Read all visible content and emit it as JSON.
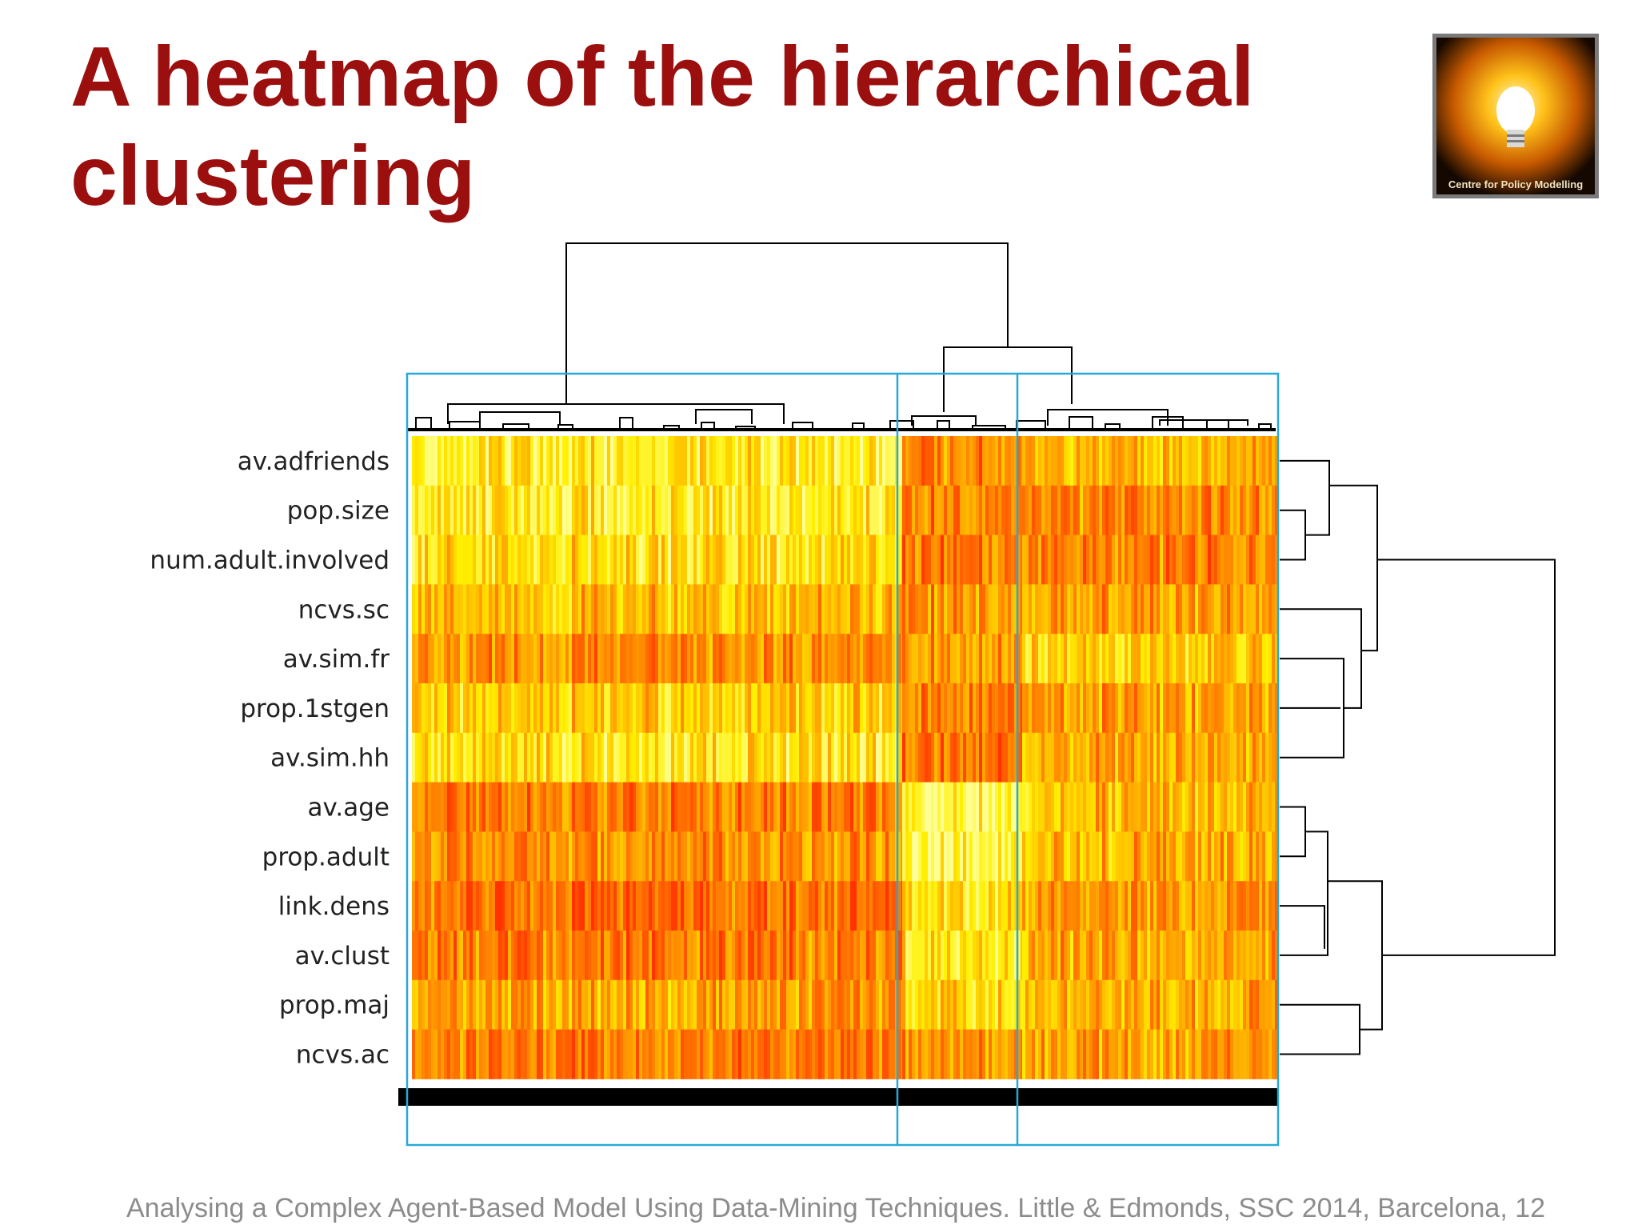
{
  "slide": {
    "title": "A heatmap of the hierarchical clustering",
    "footer": "Analysing a Complex Agent-Based Model  Using Data-Mining Techniques. Little & Edmonds, SSC 2014, Barcelona, 12",
    "logo_text": "Centre for Policy Modelling",
    "title_color": "#9b0f0f"
  },
  "chart_data": {
    "type": "heatmap",
    "title": "",
    "rows": [
      "av.adfriends",
      "pop.size",
      "num.adult.involved",
      "ncvs.sc",
      "av.sim.fr",
      "prop.1stgen",
      "av.sim.hh",
      "av.age",
      "prop.adult",
      "link.dens",
      "av.clust",
      "prop.maj",
      "ncvs.ac"
    ],
    "column_clusters": [
      {
        "name": "",
        "row_levels": [
          0.78,
          0.78,
          0.7,
          0.55,
          0.38,
          0.6,
          0.72,
          0.3,
          0.38,
          0.25,
          0.3,
          0.45,
          0.3
        ]
      },
      {
        "name": "",
        "row_levels": [
          0.3,
          0.28,
          0.25,
          0.35,
          0.4,
          0.28,
          0.22,
          0.85,
          0.82,
          0.68,
          0.72,
          0.62,
          0.4
        ]
      },
      {
        "name": "",
        "row_levels": [
          0.5,
          0.35,
          0.32,
          0.45,
          0.62,
          0.45,
          0.45,
          0.55,
          0.5,
          0.4,
          0.45,
          0.48,
          0.45
        ]
      }
    ],
    "colormap": {
      "low": "#ff3300",
      "mid": "#ff9900",
      "high": "#ffff66"
    },
    "cluster_box_color": "#29a8d8",
    "row_dendrogram": "right",
    "column_dendrogram": "top"
  }
}
